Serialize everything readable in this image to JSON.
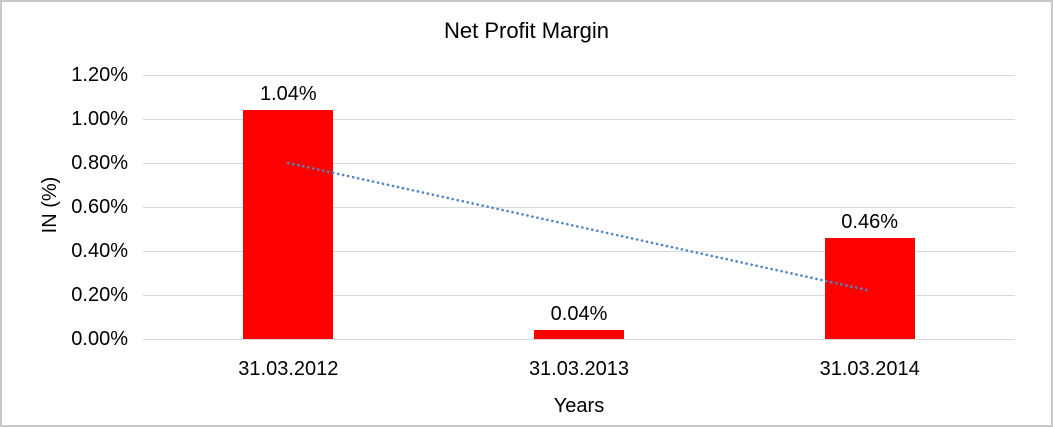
{
  "chart_data": {
    "type": "bar",
    "title": "Net Profit Margin",
    "xlabel": "Years",
    "ylabel": "IN (%)",
    "categories": [
      "31.03.2012",
      "31.03.2013",
      "31.03.2014"
    ],
    "series": [
      {
        "name": "Net Profit Margin",
        "values": [
          1.04,
          0.04,
          0.46
        ],
        "data_labels": [
          "1.04%",
          "0.04%",
          "0.46%"
        ],
        "color": "#ff0000"
      }
    ],
    "ylim": [
      0,
      1.2
    ],
    "ytick_step": 0.2,
    "ytick_labels": [
      "0.00%",
      "0.20%",
      "0.40%",
      "0.60%",
      "0.80%",
      "1.00%",
      "1.20%"
    ],
    "grid": true,
    "legend": "none",
    "trendline": {
      "type": "linear",
      "style": "dotted",
      "color": "#5185c5",
      "start_value": 0.8,
      "end_value": 0.22,
      "start_category_index": 0,
      "end_category_index": 2
    }
  },
  "colors": {
    "bar": "#ff0000",
    "trendline": "#5185c5",
    "gridline": "#d9d9d9",
    "frame_border": "#c9c9c9",
    "background": "#ffffff",
    "text": "#000000"
  }
}
